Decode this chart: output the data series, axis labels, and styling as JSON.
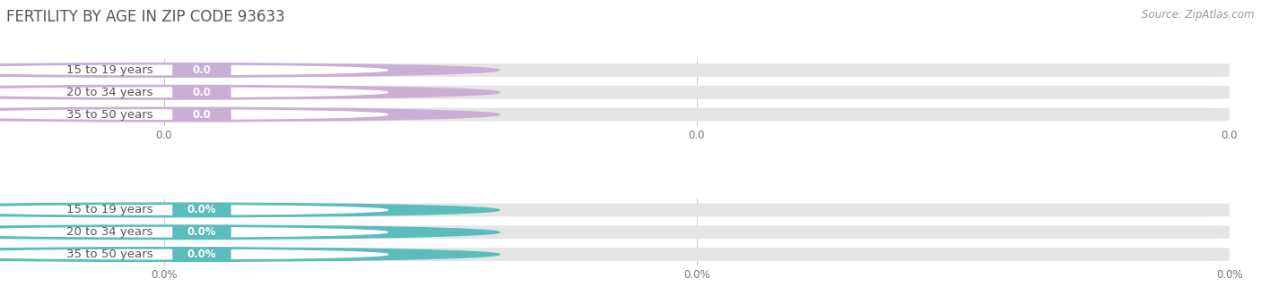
{
  "title": "FERTILITY BY AGE IN ZIP CODE 93633",
  "source": "Source: ZipAtlas.com",
  "top_group": {
    "labels": [
      "15 to 19 years",
      "20 to 34 years",
      "35 to 50 years"
    ],
    "values": [
      0.0,
      0.0,
      0.0
    ],
    "color": "#c9aed6",
    "value_format": "0.0",
    "x_tick_labels": [
      "0.0",
      "0.0",
      "0.0"
    ],
    "x_tick_positions": [
      0.0,
      0.5,
      1.0
    ]
  },
  "bottom_group": {
    "labels": [
      "15 to 19 years",
      "20 to 34 years",
      "35 to 50 years"
    ],
    "values": [
      0.0,
      0.0,
      0.0
    ],
    "color": "#5bbcbd",
    "value_format": "0.0%",
    "x_tick_labels": [
      "0.0%",
      "0.0%",
      "0.0%"
    ],
    "x_tick_positions": [
      0.0,
      0.5,
      1.0
    ]
  },
  "background_color": "#ffffff",
  "bar_background": "#e5e5e5",
  "bar_height": 0.6,
  "xlim": [
    0.0,
    1.0
  ],
  "title_fontsize": 12,
  "label_fontsize": 9.5,
  "value_fontsize": 8.5,
  "tick_fontsize": 8.5,
  "source_fontsize": 8.5
}
